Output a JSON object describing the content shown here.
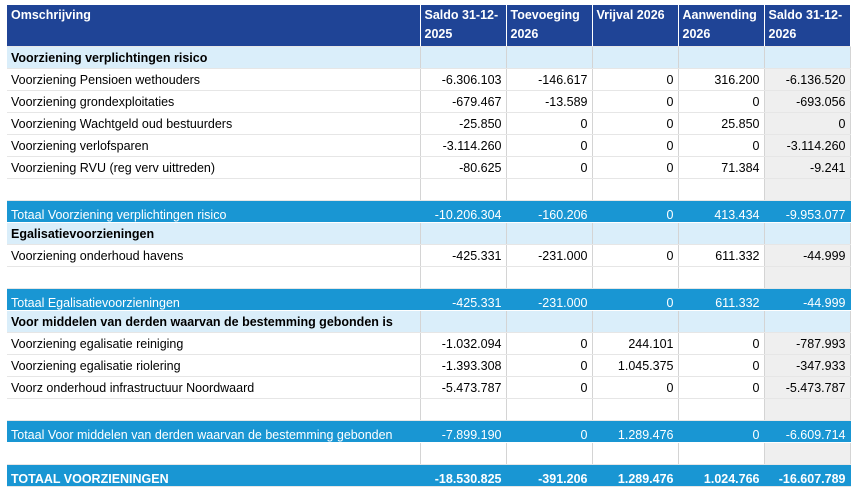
{
  "table": {
    "columns": [
      "Omschrijving",
      "Saldo 31-12-2025",
      "Toevoeging 2026",
      "Vrijval 2026",
      "Aanwending 2026",
      "Saldo 31-12-2026"
    ],
    "sections": [
      {
        "title": "Voorziening verplichtingen risico",
        "rows": [
          [
            "Voorziening Pensioen wethouders",
            "-6.306.103",
            "-146.617",
            "0",
            "316.200",
            "-6.136.520"
          ],
          [
            "Voorziening grondexploitaties",
            "-679.467",
            "-13.589",
            "0",
            "0",
            "-693.056"
          ],
          [
            "Voorziening Wachtgeld oud bestuurders",
            "-25.850",
            "0",
            "0",
            "25.850",
            "0"
          ],
          [
            "Voorziening verlofsparen",
            "-3.114.260",
            "0",
            "0",
            "0",
            "-3.114.260"
          ],
          [
            "Voorziening RVU (reg verv uittreden)",
            "-80.625",
            "0",
            "0",
            "71.384",
            "-9.241"
          ]
        ],
        "total": [
          "Totaal Voorziening verplichtingen risico",
          "-10.206.304",
          "-160.206",
          "0",
          "413.434",
          "-9.953.077"
        ]
      },
      {
        "title": "Egalisatievoorzieningen",
        "rows": [
          [
            "Voorziening onderhoud havens",
            "-425.331",
            "-231.000",
            "0",
            "611.332",
            "-44.999"
          ]
        ],
        "total": [
          "Totaal Egalisatievoorzieningen",
          "-425.331",
          "-231.000",
          "0",
          "611.332",
          "-44.999"
        ]
      },
      {
        "title": "Voor middelen van derden waarvan de bestemming gebonden is",
        "rows": [
          [
            "Voorziening egalisatie reiniging",
            "-1.032.094",
            "0",
            "244.101",
            "0",
            "-787.993"
          ],
          [
            "Voorziening egalisatie riolering",
            "-1.393.308",
            "0",
            "1.045.375",
            "0",
            "-347.933"
          ],
          [
            "Voorz onderhoud infrastructuur Noordwaard",
            "-5.473.787",
            "0",
            "0",
            "0",
            "-5.473.787"
          ]
        ],
        "total": [
          "Totaal Voor middelen van derden waarvan de bestemming gebonden",
          "-7.899.190",
          "0",
          "1.289.476",
          "0",
          "-6.609.714"
        ]
      }
    ],
    "grand_total": [
      "TOTAAL VOORZIENINGEN",
      "-18.530.825",
      "-391.206",
      "1.289.476",
      "1.024.766",
      "-16.607.789"
    ]
  }
}
